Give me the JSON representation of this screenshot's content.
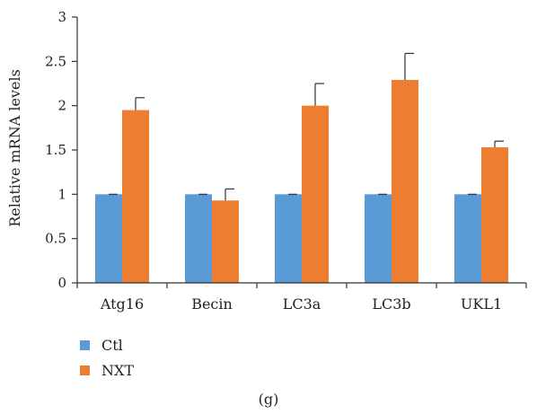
{
  "chart_data": {
    "type": "bar",
    "title": "",
    "xlabel": "",
    "ylabel": "Relative mRNA levels",
    "ylim": [
      0,
      3
    ],
    "yticks": [
      "0",
      "0.5",
      "1",
      "1.5",
      "2",
      "2.5",
      "3"
    ],
    "categories": [
      "Atg16",
      "Becin",
      "LC3a",
      "LC3b",
      "UKL1"
    ],
    "series": [
      {
        "name": "Ctl",
        "color": "#5b9bd5",
        "values": [
          1.0,
          1.0,
          1.0,
          1.0,
          1.0
        ],
        "errors": [
          0.0,
          0.0,
          0.0,
          0.0,
          0.0
        ]
      },
      {
        "name": "NXT",
        "color": "#ed7d31",
        "values": [
          1.95,
          0.93,
          2.0,
          2.29,
          1.53
        ],
        "errors": [
          0.14,
          0.13,
          0.25,
          0.3,
          0.07
        ]
      }
    ],
    "legend_position": "bottom-left",
    "grid": false,
    "error_bars": true
  },
  "panel_label": "(g)"
}
